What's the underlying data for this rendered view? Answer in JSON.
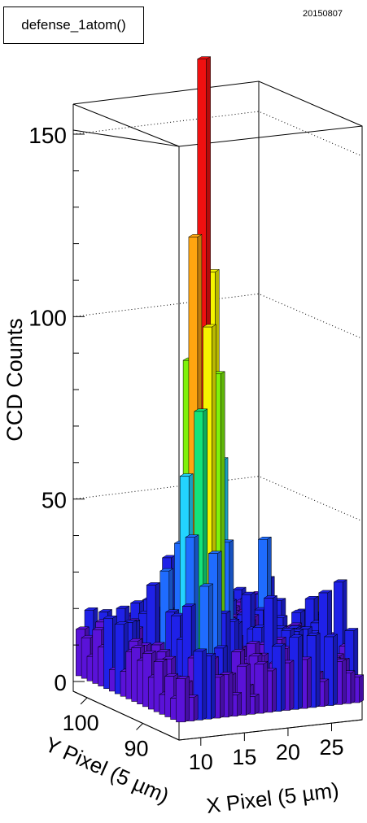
{
  "canvas": {
    "title": "defense_1atom()",
    "date": "20150807"
  },
  "chart_data": {
    "type": "lego3d",
    "zlabel": "CCD Counts",
    "xlabel": "X Pixel (5 µm)",
    "ylabel": "Y Pixel (5 µm)",
    "zlim": [
      0,
      155
    ],
    "z_ticks": [
      0,
      50,
      100,
      150
    ],
    "x_ticks": [
      10,
      15,
      20,
      25
    ],
    "y_ticks": [
      100,
      90
    ],
    "grid": true,
    "peak": {
      "x": 13,
      "y": 88,
      "value": 147
    },
    "colormap": [
      "#5a12d8",
      "#1f21e8",
      "#1f6cff",
      "#23d4ff",
      "#14e37a",
      "#7ff20b",
      "#f5f500",
      "#ffa510",
      "#f01010"
    ]
  }
}
